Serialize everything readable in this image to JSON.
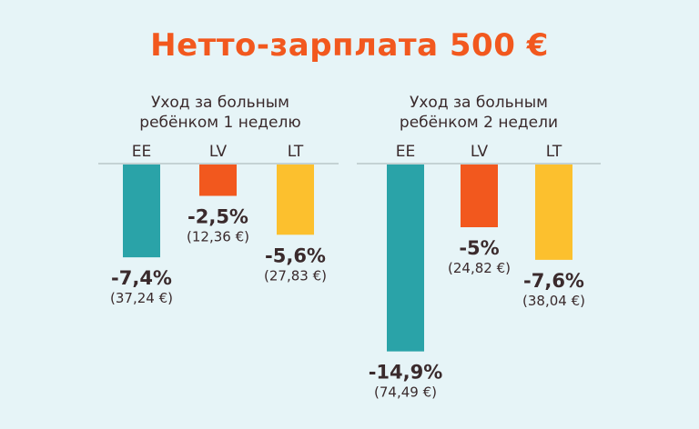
{
  "title": "Нетто-зарплата 500 €",
  "colors": {
    "EE": "#2aa3a8",
    "LV": "#f2581e",
    "LT": "#fcc02e",
    "axis": "#b9c7c9",
    "title": "#f2581e"
  },
  "chart_data": [
    {
      "type": "bar",
      "title_lines": [
        "Уход за больным",
        "ребёнком 1 неделю"
      ],
      "categories": [
        "EE",
        "LV",
        "LT"
      ],
      "values": [
        -7.4,
        -2.5,
        -5.6
      ],
      "pct_labels": [
        "-7,4%",
        "-2,5%",
        "-5,6%"
      ],
      "abs_labels": [
        "(37,24 €)",
        "(12,36 €)",
        "(27,83 €)"
      ],
      "ylim": [
        -15,
        0
      ],
      "unit": "%"
    },
    {
      "type": "bar",
      "title_lines": [
        "Уход за больным",
        "ребёнком 2 недели"
      ],
      "categories": [
        "EE",
        "LV",
        "LT"
      ],
      "values": [
        -14.9,
        -5.0,
        -7.6
      ],
      "pct_labels": [
        "-14,9%",
        "-5%",
        "-7,6%"
      ],
      "abs_labels": [
        "(74,49 €)",
        "(24,82 €)",
        "(38,04 €)"
      ],
      "ylim": [
        -15,
        0
      ],
      "unit": "%"
    }
  ]
}
